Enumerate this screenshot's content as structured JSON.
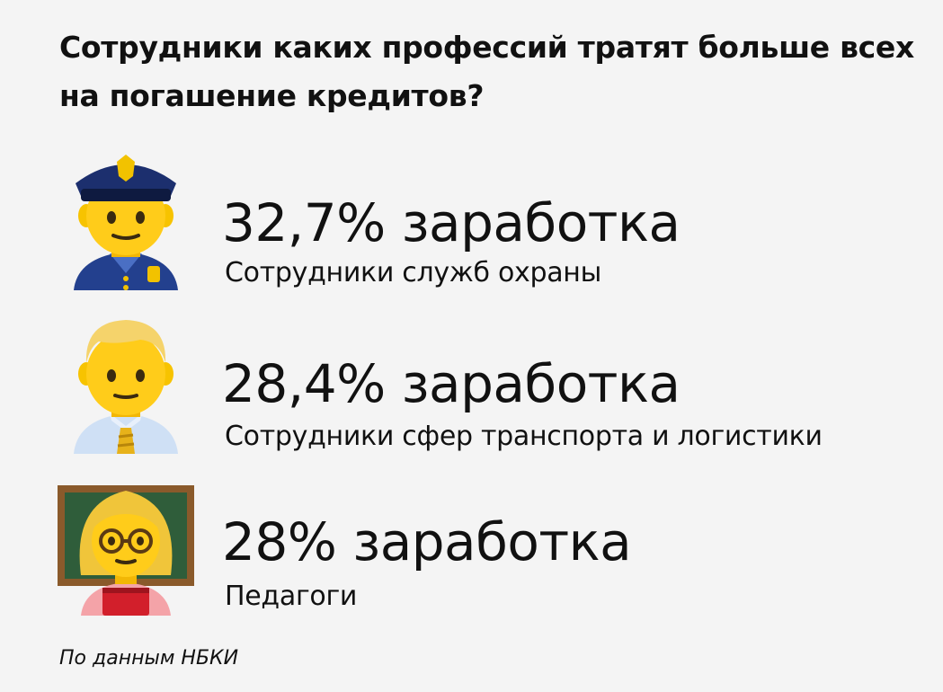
{
  "title": "Сотрудники каких профессий тратят больше всех на погашение кредитов?",
  "items": [
    {
      "icon": "police-officer-icon",
      "stat": "32,7% заработка",
      "label": "Сотрудники служб охраны"
    },
    {
      "icon": "man-office-worker-icon",
      "stat": "28,4% заработка",
      "label": "Сотрудники сфер транспорта и логистики"
    },
    {
      "icon": "woman-teacher-icon",
      "stat": "28% заработка",
      "label": "Педагоги"
    }
  ],
  "source": "По данным НБКИ"
}
